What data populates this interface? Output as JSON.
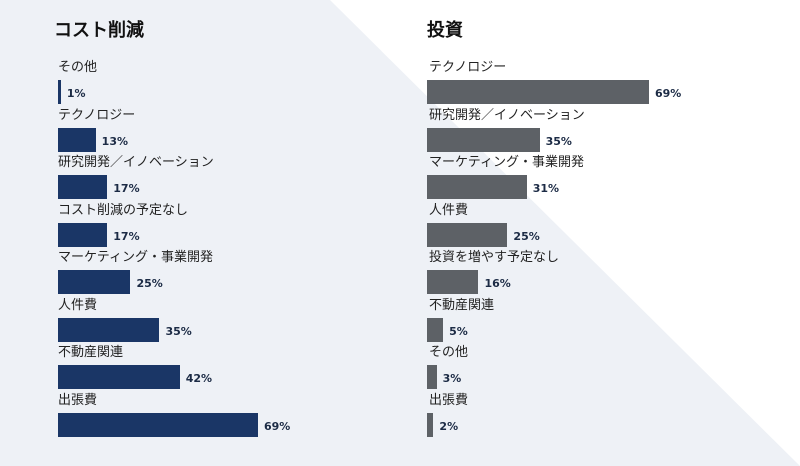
{
  "colors": {
    "cost_bar": "#1a3666",
    "invest_bar": "#5d6166",
    "background_shape": "#eef1f6"
  },
  "chart_data": [
    {
      "type": "bar",
      "orientation": "horizontal",
      "title": "コスト削減",
      "categories": [
        "その他",
        "テクノロジー",
        "研究開発／イノベーション",
        "コスト削減の予定なし",
        "マーケティング・事業開発",
        "人件費",
        "不動産関連",
        "出張費"
      ],
      "values": [
        1,
        13,
        17,
        17,
        25,
        35,
        42,
        69
      ],
      "value_labels": [
        "1%",
        "13%",
        "17%",
        "17%",
        "25%",
        "35%",
        "42%",
        "69%"
      ],
      "xlim": [
        0,
        69
      ],
      "grid": false,
      "legend": "none"
    },
    {
      "type": "bar",
      "orientation": "horizontal",
      "title": "投資",
      "categories": [
        "テクノロジー",
        "研究開発／イノベーション",
        "マーケティング・事業開発",
        "人件費",
        "投資を増やす予定なし",
        "不動産関連",
        "その他",
        "出張費"
      ],
      "values": [
        69,
        35,
        31,
        25,
        16,
        5,
        3,
        2
      ],
      "value_labels": [
        "69%",
        "35%",
        "31%",
        "25%",
        "16%",
        "5%",
        "3%",
        "2%"
      ],
      "xlim": [
        0,
        69
      ],
      "grid": false,
      "legend": "none"
    }
  ]
}
